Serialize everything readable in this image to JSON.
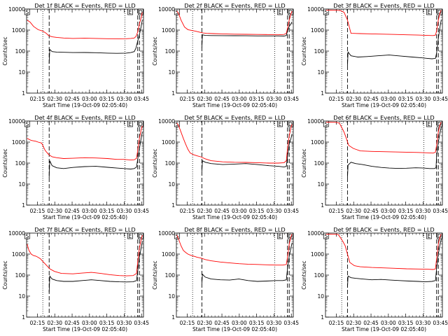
{
  "figure": {
    "ylabel": "Counts/sec",
    "xlabel": "Start Time (19-Oct-09 02:05:40)",
    "x_ticks": [
      "02:15",
      "02:30",
      "02:45",
      "03:00",
      "03:15",
      "03:30",
      "03:45"
    ],
    "y_ticks": [
      "1",
      "10",
      "100",
      "1000",
      "10000"
    ],
    "colors": {
      "events": "#000000",
      "lld": "#ff0000"
    }
  },
  "chart_data": [
    {
      "type": "line",
      "title": "Det 1f BLACK = Events, RED = LLD",
      "x_unit": "minutes after 02:05:40",
      "xlim": [
        0,
        101
      ],
      "ylim": [
        1,
        10000
      ],
      "yscale": "log",
      "markers": {
        "S": 0.5,
        "E": 89.5,
        "D": 98.5
      },
      "dotted": [
        14,
        85
      ],
      "dashed": [
        19.5,
        96,
        97.5
      ],
      "series": [
        {
          "name": "Events",
          "x": [
            19.5,
            20,
            22,
            26,
            32,
            40,
            50,
            60,
            70,
            78,
            86,
            90,
            93,
            94.5,
            96,
            97.5,
            99,
            100
          ],
          "y": [
            25,
            120,
            95,
            90,
            88,
            85,
            86,
            84,
            80,
            78,
            80,
            85,
            95,
            140,
            300,
            600,
            1500,
            3000
          ]
        },
        {
          "name": "LLD",
          "x": [
            0.5,
            3,
            6,
            10,
            14,
            17,
            19,
            22,
            26,
            32,
            40,
            50,
            60,
            70,
            80,
            86,
            90,
            93,
            94.5,
            96,
            97.5,
            99,
            100
          ],
          "y": [
            3000,
            2400,
            1500,
            1050,
            900,
            700,
            550,
            480,
            450,
            420,
            400,
            410,
            400,
            390,
            385,
            390,
            400,
            420,
            500,
            800,
            2000,
            4000,
            7000
          ]
        }
      ]
    },
    {
      "type": "line",
      "title": "Det 2f BLACK = Events, RED = LLD",
      "x_unit": "minutes after 02:05:40",
      "xlim": [
        0,
        101
      ],
      "ylim": [
        1,
        10000
      ],
      "yscale": "log",
      "markers": {
        "S": 0.5,
        "E": 89.5,
        "D": 98.5
      },
      "dotted": [
        14,
        85
      ],
      "dashed": [
        22,
        96,
        97.5
      ],
      "series": [
        {
          "name": "Events",
          "x": [
            22,
            22.5,
            25,
            30,
            40,
            50,
            60,
            70,
            80,
            88,
            93,
            95,
            96,
            97.5,
            99,
            100
          ],
          "y": [
            150,
            600,
            560,
            550,
            545,
            540,
            535,
            530,
            530,
            530,
            520,
            560,
            900,
            1500,
            2000,
            2500
          ]
        },
        {
          "name": "LLD",
          "x": [
            0.5,
            2,
            4,
            7,
            10,
            14,
            17,
            20,
            23,
            26,
            32,
            40,
            50,
            60,
            70,
            80,
            88,
            93,
            95,
            96,
            97.5,
            99,
            100
          ],
          "y": [
            8000,
            6000,
            3000,
            1400,
            1050,
            950,
            880,
            800,
            730,
            700,
            680,
            660,
            640,
            630,
            620,
            610,
            600,
            620,
            700,
            1200,
            3000,
            6000,
            8000
          ]
        }
      ]
    },
    {
      "type": "line",
      "title": "Det 3f BLACK = Events, RED = LLD",
      "x_unit": "minutes after 02:05:40",
      "xlim": [
        0,
        101
      ],
      "ylim": [
        1,
        10000
      ],
      "yscale": "log",
      "markers": {
        "S": 0.5,
        "E": 89.5,
        "D": 98.5
      },
      "dotted": [
        14,
        85
      ],
      "dashed": [
        19,
        96,
        97.5
      ],
      "series": [
        {
          "name": "Events",
          "x": [
            19,
            19.5,
            22,
            28,
            36,
            45,
            55,
            65,
            75,
            83,
            88,
            92,
            95,
            96,
            97.5,
            99,
            100
          ],
          "y": [
            20,
            90,
            60,
            52,
            55,
            60,
            65,
            58,
            52,
            48,
            45,
            43,
            45,
            80,
            400,
            1500,
            3000
          ]
        },
        {
          "name": "LLD",
          "x": [
            0.5,
            3,
            6,
            8,
            10,
            13,
            16,
            19,
            22,
            30,
            40,
            50,
            60,
            70,
            80,
            88,
            93,
            95,
            96,
            97.5,
            99,
            100
          ],
          "y": [
            9000,
            9000,
            8800,
            8800,
            8800,
            8500,
            7000,
            3000,
            700,
            680,
            660,
            640,
            620,
            600,
            580,
            560,
            550,
            580,
            900,
            3000,
            7000,
            9000
          ]
        }
      ]
    },
    {
      "type": "line",
      "title": "Det 4f BLACK = Events, RED = LLD",
      "x_unit": "minutes after 02:05:40",
      "xlim": [
        0,
        101
      ],
      "ylim": [
        1,
        10000
      ],
      "yscale": "log",
      "markers": {
        "S": 0.5,
        "E": 89.5,
        "D": 98.5
      },
      "dotted": [
        14,
        85
      ],
      "dashed": [
        19.5,
        96,
        97.5
      ],
      "series": [
        {
          "name": "Events",
          "x": [
            19.5,
            20,
            22,
            26,
            32,
            40,
            50,
            60,
            70,
            78,
            84,
            90,
            93,
            95,
            96,
            97.5,
            99,
            100
          ],
          "y": [
            20,
            130,
            75,
            60,
            55,
            62,
            68,
            70,
            63,
            58,
            55,
            52,
            55,
            65,
            150,
            500,
            1500,
            3000
          ]
        },
        {
          "name": "LLD",
          "x": [
            0.5,
            4,
            8,
            10,
            13,
            16,
            19,
            22,
            26,
            32,
            40,
            50,
            60,
            70,
            78,
            84,
            90,
            93,
            95,
            96,
            97.5,
            99,
            100
          ],
          "y": [
            1500,
            1200,
            1100,
            1000,
            900,
            400,
            260,
            200,
            180,
            165,
            170,
            180,
            175,
            165,
            150,
            150,
            140,
            145,
            170,
            400,
            1500,
            4000,
            6000
          ]
        }
      ]
    },
    {
      "type": "line",
      "title": "Det 5f BLACK = Events, RED = LLD",
      "x_unit": "minutes after 02:05:40",
      "xlim": [
        0,
        101
      ],
      "ylim": [
        1,
        10000
      ],
      "yscale": "log",
      "markers": {
        "S": 0.5,
        "E": 89.5,
        "D": 98.5
      },
      "dotted": [
        14,
        85
      ],
      "dashed": [
        22,
        96,
        97.5
      ],
      "series": [
        {
          "name": "Events",
          "x": [
            22,
            22.5,
            25,
            30,
            40,
            50,
            60,
            70,
            80,
            88,
            93,
            95,
            96,
            97.5,
            99,
            100
          ],
          "y": [
            40,
            130,
            110,
            95,
            85,
            90,
            95,
            85,
            75,
            70,
            65,
            70,
            200,
            800,
            1500,
            2500
          ]
        },
        {
          "name": "LLD",
          "x": [
            0.5,
            2,
            4,
            6,
            8,
            10,
            12,
            15,
            18,
            21,
            25,
            30,
            40,
            50,
            60,
            70,
            80,
            88,
            93,
            95,
            96,
            97.5,
            99,
            100
          ],
          "y": [
            8000,
            6000,
            3000,
            1500,
            800,
            450,
            300,
            250,
            220,
            200,
            160,
            130,
            115,
            110,
            108,
            105,
            100,
            100,
            105,
            130,
            500,
            2000,
            5000,
            7000
          ]
        }
      ]
    },
    {
      "type": "line",
      "title": "Det 6f BLACK = Events, RED = LLD",
      "x_unit": "minutes after 02:05:40",
      "xlim": [
        0,
        101
      ],
      "ylim": [
        1,
        10000
      ],
      "yscale": "log",
      "markers": {
        "S": 0.5,
        "E": 89.5,
        "D": 98.5
      },
      "dotted": [
        14,
        85
      ],
      "dashed": [
        19,
        96,
        97.5
      ],
      "series": [
        {
          "name": "Events",
          "x": [
            19,
            19.5,
            22,
            26,
            32,
            40,
            48,
            55,
            62,
            70,
            78,
            85,
            90,
            94,
            95.5,
            96,
            97.5,
            99,
            100
          ],
          "y": [
            20,
            80,
            110,
            95,
            85,
            70,
            62,
            58,
            56,
            57,
            60,
            58,
            55,
            55,
            60,
            200,
            1000,
            3000,
            5000
          ]
        },
        {
          "name": "LLD",
          "x": [
            0.5,
            3,
            6,
            8,
            10,
            12,
            14,
            16,
            18,
            20,
            24,
            30,
            40,
            50,
            60,
            70,
            80,
            88,
            93,
            95,
            96,
            97.5,
            99,
            100
          ],
          "y": [
            9000,
            9000,
            8800,
            8800,
            8500,
            8000,
            5000,
            3000,
            1500,
            700,
            500,
            380,
            360,
            350,
            340,
            330,
            320,
            310,
            300,
            330,
            700,
            3000,
            7000,
            9000
          ]
        }
      ]
    },
    {
      "type": "line",
      "title": "Det 7f BLACK = Events, RED = LLD",
      "x_unit": "minutes after 02:05:40",
      "xlim": [
        0,
        101
      ],
      "ylim": [
        1,
        10000
      ],
      "yscale": "log",
      "markers": {
        "S": 0.5,
        "E": 89.5,
        "D": 98.5
      },
      "dotted": [
        14,
        85
      ],
      "dashed": [
        19.5,
        96,
        97.5
      ],
      "series": [
        {
          "name": "Events",
          "x": [
            19.5,
            20,
            22,
            26,
            32,
            40,
            48,
            56,
            64,
            72,
            80,
            86,
            92,
            95,
            96,
            97.5,
            99,
            100
          ],
          "y": [
            15,
            90,
            65,
            55,
            50,
            50,
            55,
            60,
            55,
            50,
            48,
            47,
            48,
            55,
            150,
            700,
            2000,
            4000
          ]
        },
        {
          "name": "LLD",
          "x": [
            0.5,
            2,
            4,
            6,
            8,
            10,
            12,
            14,
            17,
            20,
            24,
            30,
            40,
            48,
            56,
            64,
            72,
            80,
            86,
            92,
            95,
            96,
            97.5,
            99,
            100
          ],
          "y": [
            3000,
            1500,
            1000,
            850,
            800,
            700,
            600,
            450,
            300,
            200,
            150,
            120,
            115,
            125,
            135,
            120,
            105,
            95,
            92,
            95,
            120,
            400,
            2000,
            5000,
            8000
          ]
        }
      ]
    },
    {
      "type": "line",
      "title": "Det 8f BLACK = Events, RED = LLD",
      "x_unit": "minutes after 02:05:40",
      "xlim": [
        0,
        101
      ],
      "ylim": [
        1,
        10000
      ],
      "yscale": "log",
      "markers": {
        "S": 0.5,
        "E": 89.5,
        "D": 98.5
      },
      "dotted": [
        14,
        85
      ],
      "dashed": [
        22,
        96,
        97.5
      ],
      "series": [
        {
          "name": "Events",
          "x": [
            22,
            22.5,
            25,
            30,
            38,
            46,
            54,
            62,
            70,
            78,
            86,
            92,
            95,
            96,
            97.5,
            99,
            100
          ],
          "y": [
            40,
            110,
            80,
            65,
            60,
            58,
            65,
            55,
            50,
            52,
            55,
            55,
            60,
            200,
            800,
            2000,
            3500
          ]
        },
        {
          "name": "LLD",
          "x": [
            0.5,
            2,
            4,
            6,
            8,
            10,
            12,
            15,
            18,
            21,
            25,
            30,
            38,
            46,
            54,
            62,
            70,
            78,
            86,
            92,
            95,
            96,
            97.5,
            99,
            100
          ],
          "y": [
            8000,
            5000,
            2500,
            1500,
            1200,
            1000,
            900,
            800,
            700,
            650,
            550,
            480,
            420,
            380,
            350,
            330,
            320,
            310,
            300,
            300,
            320,
            700,
            3000,
            7000,
            9000
          ]
        }
      ]
    },
    {
      "type": "line",
      "title": "Det 9f BLACK = Events, RED = LLD",
      "x_unit": "minutes after 02:05:40",
      "xlim": [
        0,
        101
      ],
      "ylim": [
        1,
        10000
      ],
      "yscale": "log",
      "markers": {
        "S": 0.5,
        "E": 89.5,
        "D": 98.5
      },
      "dotted": [
        14,
        85
      ],
      "dashed": [
        19,
        96,
        97.5
      ],
      "series": [
        {
          "name": "Events",
          "x": [
            19,
            19.5,
            22,
            26,
            32,
            40,
            48,
            56,
            64,
            72,
            80,
            86,
            92,
            95,
            96,
            97.5,
            99,
            100
          ],
          "y": [
            25,
            90,
            75,
            70,
            65,
            60,
            62,
            58,
            55,
            52,
            50,
            48,
            50,
            55,
            200,
            1000,
            3000,
            5000
          ]
        },
        {
          "name": "LLD",
          "x": [
            0.5,
            3,
            6,
            9,
            11,
            13,
            15,
            17,
            19,
            21,
            25,
            30,
            40,
            50,
            60,
            70,
            80,
            88,
            93,
            95,
            96,
            97.5,
            99,
            100
          ],
          "y": [
            9000,
            9000,
            8800,
            8800,
            8500,
            6000,
            4000,
            2500,
            1000,
            400,
            280,
            250,
            230,
            220,
            210,
            200,
            195,
            190,
            185,
            200,
            600,
            3000,
            7000,
            9000
          ]
        }
      ]
    }
  ]
}
